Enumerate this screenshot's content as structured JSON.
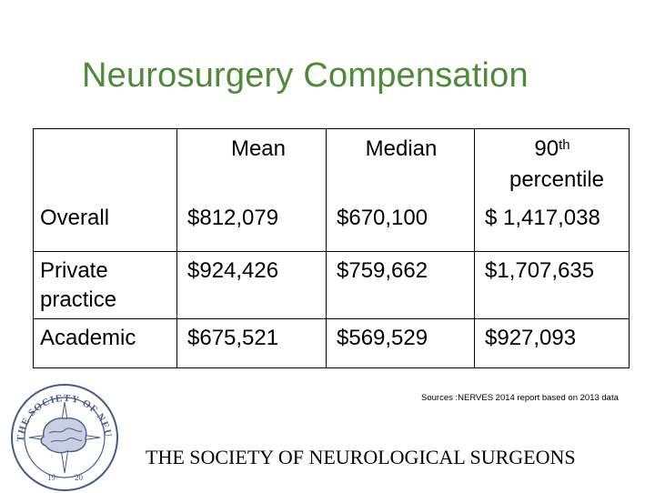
{
  "title": "Neurosurgery Compensation",
  "table": {
    "headers": {
      "mean": "Mean",
      "median": "Median",
      "p90_number": "90",
      "p90_sup": "th",
      "p90_word": "percentile"
    },
    "rows": [
      {
        "label": "Overall",
        "mean": "$812,079",
        "median": "$670,100",
        "p90": "$ 1,417,038"
      },
      {
        "label_line1": "Private",
        "label_line2": "practice",
        "mean": "$924,426",
        "median": "$759,662",
        "p90": "$1,707,635"
      },
      {
        "label": "Academic",
        "mean": "$675,521",
        "median": "$569,529",
        "p90": "$927,093"
      }
    ]
  },
  "sources": "Sources :NERVES 2014 report based on 2013 data",
  "society_name": "THE SOCIETY OF NEUROLOGICAL SURGEONS",
  "logo": {
    "icon": "society-seal-icon",
    "color": "#4a5a8a"
  }
}
